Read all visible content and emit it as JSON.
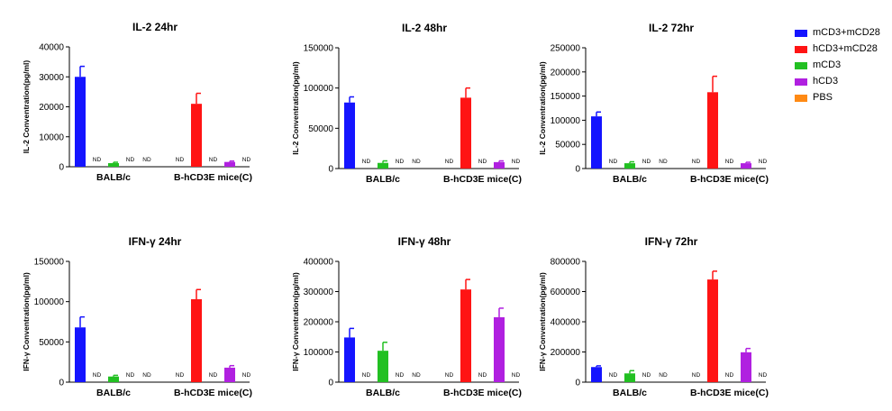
{
  "legend": [
    {
      "name": "mCD3+mCD28",
      "color": "#1414ff"
    },
    {
      "name": "hCD3+mCD28",
      "color": "#ff1414"
    },
    {
      "name": "mCD3",
      "color": "#22c022"
    },
    {
      "name": "hCD3",
      "color": "#b020e0"
    },
    {
      "name": "PBS",
      "color": "#ff8a14"
    }
  ],
  "chart_data": [
    {
      "type": "bar",
      "title": "IL-2 24hr",
      "ylabel": "IL-2 Conventration(pg/ml)",
      "ylim": [
        0,
        40000
      ],
      "yticks": [
        0,
        10000,
        20000,
        30000,
        40000
      ],
      "groups": [
        "BALB/c",
        "B-hCD3E mice(C)"
      ],
      "series": [
        {
          "name": "mCD3+mCD28",
          "values": [
            30000,
            null
          ],
          "errors": [
            3500,
            0
          ]
        },
        {
          "name": "hCD3+mCD28",
          "values": [
            null,
            21000
          ],
          "errors": [
            0,
            3500
          ]
        },
        {
          "name": "mCD3",
          "values": [
            1200,
            null
          ],
          "errors": [
            300,
            0
          ]
        },
        {
          "name": "hCD3",
          "values": [
            null,
            1600
          ],
          "errors": [
            0,
            300
          ]
        },
        {
          "name": "PBS",
          "values": [
            null,
            null
          ],
          "errors": [
            0,
            0
          ]
        }
      ],
      "nd_label": "ND"
    },
    {
      "type": "bar",
      "title": "IL-2 48hr",
      "ylabel": "IL-2 Conventration(pg/ml)",
      "ylim": [
        0,
        150000
      ],
      "yticks": [
        0,
        50000,
        100000,
        150000
      ],
      "groups": [
        "BALB/c",
        "B-hCD3E mice(C)"
      ],
      "series": [
        {
          "name": "mCD3+mCD28",
          "values": [
            82000,
            null
          ],
          "errors": [
            7000,
            0
          ]
        },
        {
          "name": "hCD3+mCD28",
          "values": [
            null,
            88000
          ],
          "errors": [
            0,
            12000
          ]
        },
        {
          "name": "mCD3",
          "values": [
            7000,
            null
          ],
          "errors": [
            2500,
            0
          ]
        },
        {
          "name": "hCD3",
          "values": [
            null,
            8000
          ],
          "errors": [
            0,
            1500
          ]
        },
        {
          "name": "PBS",
          "values": [
            null,
            null
          ],
          "errors": [
            0,
            0
          ]
        }
      ],
      "nd_label": "ND"
    },
    {
      "type": "bar",
      "title": "IL-2 72hr",
      "ylabel": "IL-2 Conventration(pg/ml)",
      "ylim": [
        0,
        250000
      ],
      "yticks": [
        0,
        50000,
        100000,
        150000,
        200000,
        250000
      ],
      "groups": [
        "BALB/c",
        "B-hCD3E mice(C)"
      ],
      "series": [
        {
          "name": "mCD3+mCD28",
          "values": [
            108000,
            null
          ],
          "errors": [
            9000,
            0
          ]
        },
        {
          "name": "hCD3+mCD28",
          "values": [
            null,
            158000
          ],
          "errors": [
            0,
            33000
          ]
        },
        {
          "name": "mCD3",
          "values": [
            11000,
            null
          ],
          "errors": [
            3000,
            0
          ]
        },
        {
          "name": "hCD3",
          "values": [
            null,
            11000
          ],
          "errors": [
            0,
            2000
          ]
        },
        {
          "name": "PBS",
          "values": [
            null,
            null
          ],
          "errors": [
            0,
            0
          ]
        }
      ],
      "nd_label": "ND"
    },
    {
      "type": "bar",
      "title": "IFN-γ 24hr",
      "ylabel": "IFN-γ Conventration(pg/ml)",
      "ylim": [
        0,
        150000
      ],
      "yticks": [
        0,
        50000,
        100000,
        150000
      ],
      "groups": [
        "BALB/c",
        "B-hCD3E mice(C)"
      ],
      "series": [
        {
          "name": "mCD3+mCD28",
          "values": [
            68000,
            null
          ],
          "errors": [
            13000,
            0
          ]
        },
        {
          "name": "hCD3+mCD28",
          "values": [
            null,
            103000
          ],
          "errors": [
            0,
            12000
          ]
        },
        {
          "name": "mCD3",
          "values": [
            7000,
            null
          ],
          "errors": [
            1500,
            0
          ]
        },
        {
          "name": "hCD3",
          "values": [
            null,
            18000
          ],
          "errors": [
            0,
            2500
          ]
        },
        {
          "name": "PBS",
          "values": [
            null,
            null
          ],
          "errors": [
            0,
            0
          ]
        }
      ],
      "nd_label": "ND"
    },
    {
      "type": "bar",
      "title": "IFN-γ 48hr",
      "ylabel": "IFN-γ Conventration(pg/ml)",
      "ylim": [
        0,
        400000
      ],
      "yticks": [
        0,
        100000,
        200000,
        300000,
        400000
      ],
      "groups": [
        "BALB/c",
        "B-hCD3E mice(C)"
      ],
      "series": [
        {
          "name": "mCD3+mCD28",
          "values": [
            148000,
            null
          ],
          "errors": [
            30000,
            0
          ]
        },
        {
          "name": "hCD3+mCD28",
          "values": [
            null,
            307000
          ],
          "errors": [
            0,
            33000
          ]
        },
        {
          "name": "mCD3",
          "values": [
            104000,
            null
          ],
          "errors": [
            28000,
            0
          ]
        },
        {
          "name": "hCD3",
          "values": [
            null,
            215000
          ],
          "errors": [
            0,
            30000
          ]
        },
        {
          "name": "PBS",
          "values": [
            null,
            null
          ],
          "errors": [
            0,
            0
          ]
        }
      ],
      "nd_label": "ND"
    },
    {
      "type": "bar",
      "title": "IFN-γ 72hr",
      "ylabel": "IFN-γ Conventration(pg/ml)",
      "ylim": [
        0,
        800000
      ],
      "yticks": [
        0,
        200000,
        400000,
        600000,
        800000
      ],
      "groups": [
        "BALB/c",
        "B-hCD3E mice(C)"
      ],
      "series": [
        {
          "name": "mCD3+mCD28",
          "values": [
            100000,
            null
          ],
          "errors": [
            8000,
            0
          ]
        },
        {
          "name": "hCD3+mCD28",
          "values": [
            null,
            680000
          ],
          "errors": [
            0,
            55000
          ]
        },
        {
          "name": "mCD3",
          "values": [
            58000,
            null
          ],
          "errors": [
            18000,
            0
          ]
        },
        {
          "name": "hCD3",
          "values": [
            null,
            198000
          ],
          "errors": [
            0,
            25000
          ]
        },
        {
          "name": "PBS",
          "values": [
            null,
            null
          ],
          "errors": [
            0,
            0
          ]
        }
      ],
      "nd_label": "ND"
    }
  ]
}
